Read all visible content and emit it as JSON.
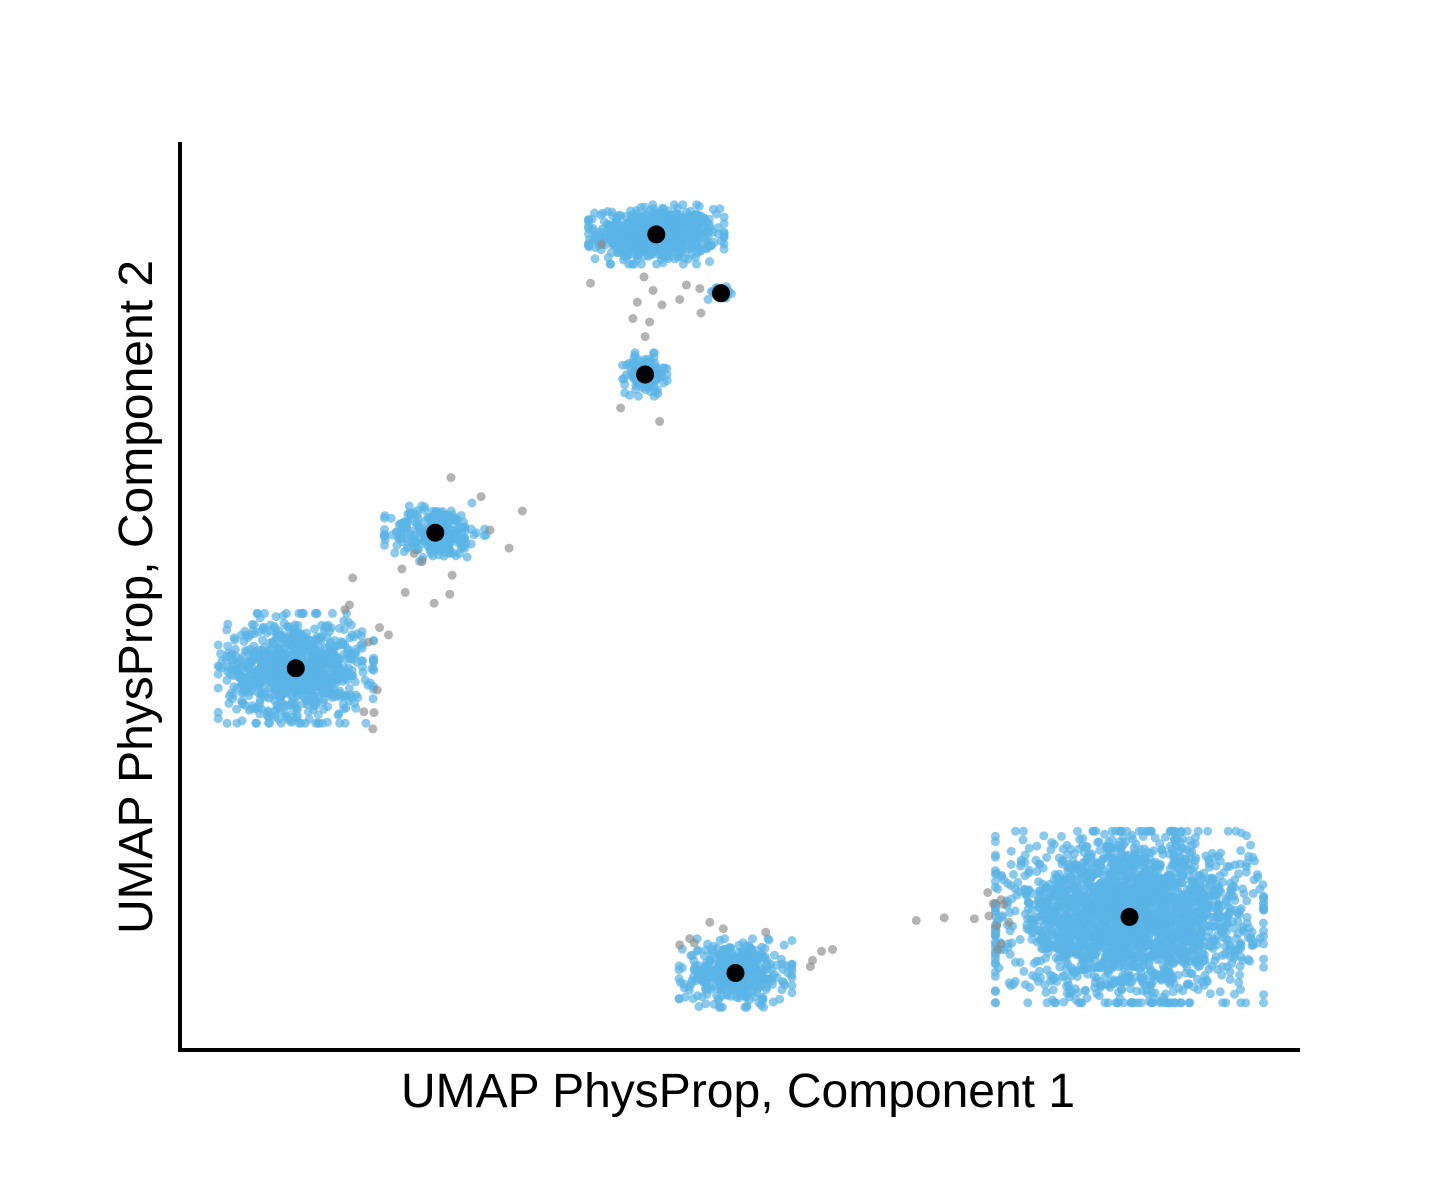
{
  "chart_data": {
    "type": "scatter",
    "title": "",
    "xlabel": "UMAP PhysProp, Component 1",
    "ylabel": "UMAP PhysProp, Component 2",
    "xlim": [
      0,
      100
    ],
    "ylim": [
      0,
      100
    ],
    "grid": false,
    "legend": "none",
    "ticks": "hidden",
    "colors": {
      "cluster_point": "#5ab4e5",
      "noise_point": "#8c8c8c",
      "centroid": "#000000"
    },
    "clusters": [
      {
        "center": [
          42.5,
          90.0
        ],
        "spread": [
          4.8,
          2.6
        ],
        "points": 700
      },
      {
        "center": [
          48.3,
          83.5
        ],
        "spread": [
          1.2,
          0.6
        ],
        "points": 45
      },
      {
        "center": [
          41.5,
          74.5
        ],
        "spread": [
          1.6,
          1.9
        ],
        "points": 140
      },
      {
        "center": [
          22.7,
          57.0
        ],
        "spread": [
          3.6,
          2.6
        ],
        "points": 260
      },
      {
        "center": [
          10.2,
          42.0
        ],
        "spread": [
          5.5,
          4.8
        ],
        "points": 900
      },
      {
        "center": [
          49.6,
          8.3
        ],
        "spread": [
          4.0,
          3.0
        ],
        "points": 450
      },
      {
        "center": [
          84.9,
          14.5
        ],
        "spread": [
          9.5,
          7.5
        ],
        "points": 2400
      }
    ],
    "centroids": [
      {
        "x": 42.5,
        "y": 90.0
      },
      {
        "x": 48.3,
        "y": 83.5
      },
      {
        "x": 41.5,
        "y": 74.5
      },
      {
        "x": 22.7,
        "y": 57.0
      },
      {
        "x": 10.2,
        "y": 42.0
      },
      {
        "x": 49.6,
        "y": 8.3
      },
      {
        "x": 84.9,
        "y": 14.5
      }
    ],
    "noise_points": [
      {
        "x": 36.6,
        "y": 84.6
      },
      {
        "x": 41.4,
        "y": 85.3
      },
      {
        "x": 42.2,
        "y": 83.8
      },
      {
        "x": 40.8,
        "y": 82.5
      },
      {
        "x": 43.0,
        "y": 82.2
      },
      {
        "x": 44.6,
        "y": 82.8
      },
      {
        "x": 45.2,
        "y": 84.4
      },
      {
        "x": 40.4,
        "y": 80.7
      },
      {
        "x": 41.9,
        "y": 80.3
      },
      {
        "x": 41.5,
        "y": 78.7
      },
      {
        "x": 46.4,
        "y": 84.0
      },
      {
        "x": 46.5,
        "y": 81.3
      },
      {
        "x": 37.6,
        "y": 88.9
      },
      {
        "x": 39.3,
        "y": 70.8
      },
      {
        "x": 42.8,
        "y": 69.3
      },
      {
        "x": 24.1,
        "y": 63.1
      },
      {
        "x": 26.8,
        "y": 61.0
      },
      {
        "x": 30.5,
        "y": 59.4
      },
      {
        "x": 27.6,
        "y": 57.3
      },
      {
        "x": 29.3,
        "y": 55.3
      },
      {
        "x": 20.8,
        "y": 54.7
      },
      {
        "x": 21.5,
        "y": 53.8
      },
      {
        "x": 19.7,
        "y": 53.0
      },
      {
        "x": 24.2,
        "y": 52.3
      },
      {
        "x": 15.3,
        "y": 52.0
      },
      {
        "x": 24.0,
        "y": 50.2
      },
      {
        "x": 15.0,
        "y": 49.0
      },
      {
        "x": 14.6,
        "y": 48.5
      },
      {
        "x": 20.0,
        "y": 50.4
      },
      {
        "x": 22.6,
        "y": 49.2
      },
      {
        "x": 17.7,
        "y": 46.5
      },
      {
        "x": 16.7,
        "y": 44.9
      },
      {
        "x": 18.5,
        "y": 45.7
      },
      {
        "x": 17.5,
        "y": 39.6
      },
      {
        "x": 16.3,
        "y": 37.2
      },
      {
        "x": 17.2,
        "y": 37.1
      },
      {
        "x": 17.1,
        "y": 35.3
      },
      {
        "x": 71.0,
        "y": 14.3
      },
      {
        "x": 72.3,
        "y": 14.6
      },
      {
        "x": 68.3,
        "y": 14.4
      },
      {
        "x": 65.8,
        "y": 14.1
      },
      {
        "x": 73.4,
        "y": 16.4
      },
      {
        "x": 74.1,
        "y": 13.9
      },
      {
        "x": 73.4,
        "y": 11.5
      },
      {
        "x": 73.1,
        "y": 10.9
      },
      {
        "x": 72.7,
        "y": 16.0
      },
      {
        "x": 73.6,
        "y": 15.9
      },
      {
        "x": 72.2,
        "y": 17.2
      },
      {
        "x": 73.0,
        "y": 13.5
      },
      {
        "x": 47.3,
        "y": 13.9
      },
      {
        "x": 48.5,
        "y": 13.2
      },
      {
        "x": 44.6,
        "y": 11.4
      },
      {
        "x": 45.5,
        "y": 12.1
      },
      {
        "x": 45.9,
        "y": 11.6
      },
      {
        "x": 57.3,
        "y": 10.7
      },
      {
        "x": 56.3,
        "y": 9.0
      },
      {
        "x": 56.5,
        "y": 9.7
      },
      {
        "x": 52.3,
        "y": 12.8
      },
      {
        "x": 58.3,
        "y": 10.9
      }
    ]
  }
}
